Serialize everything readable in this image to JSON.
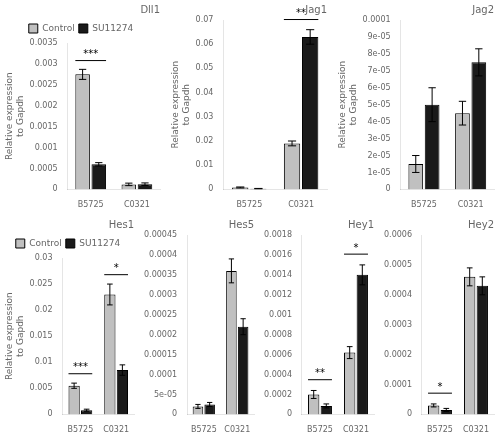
{
  "chart_data": [
    {
      "type": "bar",
      "title": "Dll1",
      "ylabel": "Relative expression\nto Gapdh",
      "categories": [
        "B5725",
        "C0321"
      ],
      "series": [
        {
          "name": "Control",
          "color": "#c0c0c0",
          "values": [
            0.00275,
            0.00012
          ],
          "errors": [
            0.00012,
            3e-05
          ]
        },
        {
          "name": "SU11274",
          "color": "#1a1a1a",
          "values": [
            0.0006,
            0.000125
          ],
          "errors": [
            4e-05,
            3e-05
          ]
        }
      ],
      "ylim": [
        0,
        0.0035
      ],
      "yticks": [
        0,
        0.0005,
        0.001,
        0.0015,
        0.002,
        0.0025,
        0.003,
        0.0035
      ],
      "grid": false,
      "legend": "top",
      "annotations": [
        {
          "category": "B5725",
          "text": "***"
        }
      ]
    },
    {
      "type": "bar",
      "title": "Jag1",
      "ylabel": "Relative expression\nto Gapdh",
      "categories": [
        "B5725",
        "C0321"
      ],
      "series": [
        {
          "name": "Control",
          "color": "#c0c0c0",
          "values": [
            0.0008,
            0.019
          ],
          "errors": [
            0.0002,
            0.001
          ]
        },
        {
          "name": "SU11274",
          "color": "#1a1a1a",
          "values": [
            0.0003,
            0.063
          ],
          "errors": [
            0.0001,
            0.003
          ]
        }
      ],
      "ylim": [
        0,
        0.07
      ],
      "yticks": [
        0,
        0.01,
        0.02,
        0.03,
        0.04,
        0.05,
        0.06,
        0.07
      ],
      "grid": false,
      "annotations": [
        {
          "category": "C0321",
          "text": "**"
        }
      ]
    },
    {
      "type": "bar",
      "title": "Jag2",
      "ylabel": "Relative expression\nto Gapdh",
      "categories": [
        "B5725",
        "C0321"
      ],
      "series": [
        {
          "name": "Control",
          "color": "#c0c0c0",
          "values": [
            1.5e-05,
            4.5e-05
          ],
          "errors": [
            5e-06,
            7e-06
          ]
        },
        {
          "name": "SU11274",
          "color": "#1a1a1a",
          "values": [
            5e-05,
            7.5e-05
          ],
          "errors": [
            1e-05,
            8e-06
          ]
        }
      ],
      "ylim": [
        0,
        0.0001
      ],
      "yticks": [
        0,
        {
          "value": 1e-05,
          "label": "1e-05"
        },
        {
          "value": 2e-05,
          "label": "2e-05"
        },
        {
          "value": 3e-05,
          "label": "3e-05"
        },
        {
          "value": 4e-05,
          "label": "4e-05"
        },
        {
          "value": 5e-05,
          "label": "5e-05"
        },
        {
          "value": 6e-05,
          "label": "6e-05"
        },
        {
          "value": 7e-05,
          "label": "7e-05"
        },
        {
          "value": 8e-05,
          "label": "8e-05"
        },
        {
          "value": 9e-05,
          "label": "9e-05"
        },
        0.0001
      ],
      "grid": false
    },
    {
      "type": "bar",
      "title": "Hes1",
      "ylabel": "Relative expression\nto Gapdh",
      "categories": [
        "B5725",
        "C0321"
      ],
      "series": [
        {
          "name": "Control",
          "color": "#c0c0c0",
          "values": [
            0.0055,
            0.023
          ],
          "errors": [
            0.0005,
            0.002
          ]
        },
        {
          "name": "SU11274",
          "color": "#1a1a1a",
          "values": [
            0.0008,
            0.0085
          ],
          "errors": [
            0.0002,
            0.001
          ]
        }
      ],
      "ylim": [
        0,
        0.03
      ],
      "yticks": [
        0,
        0.005,
        0.01,
        0.015,
        0.02,
        0.025,
        0.03
      ],
      "grid": false,
      "legend": "top",
      "annotations": [
        {
          "category": "B5725",
          "text": "***"
        },
        {
          "category": "C0321",
          "text": "*"
        }
      ]
    },
    {
      "type": "bar",
      "title": "Hes5",
      "categories": [
        "B5725",
        "C0321"
      ],
      "series": [
        {
          "name": "Control",
          "color": "#c0c0c0",
          "values": [
            2e-05,
            0.00036
          ],
          "errors": [
            5e-06,
            3e-05
          ]
        },
        {
          "name": "SU11274",
          "color": "#1a1a1a",
          "values": [
            2.5e-05,
            0.00022
          ],
          "errors": [
            5e-06,
            2e-05
          ]
        }
      ],
      "ylim": [
        0,
        0.00045
      ],
      "yticks": [
        0,
        {
          "value": 5e-05,
          "label": "5e-05"
        },
        0.0001,
        0.00015,
        0.0002,
        0.00025,
        0.0003,
        0.00035,
        0.0004,
        0.00045
      ],
      "grid": false
    },
    {
      "type": "bar",
      "title": "Hey1",
      "categories": [
        "B5725",
        "C0321"
      ],
      "series": [
        {
          "name": "Control",
          "color": "#c0c0c0",
          "values": [
            0.0002,
            0.00062
          ],
          "errors": [
            4e-05,
            6e-05
          ]
        },
        {
          "name": "SU11274",
          "color": "#1a1a1a",
          "values": [
            8.5e-05,
            0.0014
          ],
          "errors": [
            2e-05,
            0.0001
          ]
        }
      ],
      "ylim": [
        0,
        0.0018
      ],
      "yticks": [
        0,
        0.0002,
        0.0004,
        0.0006,
        0.0008,
        0.001,
        0.0012,
        0.0014,
        0.0016,
        0.0018
      ],
      "grid": false,
      "annotations": [
        {
          "category": "B5725",
          "text": "**"
        },
        {
          "category": "C0321",
          "text": "*"
        }
      ]
    },
    {
      "type": "bar",
      "title": "Hey2",
      "categories": [
        "B5725",
        "C0321"
      ],
      "series": [
        {
          "name": "Control",
          "color": "#c0c0c0",
          "values": [
            3e-05,
            0.00046
          ],
          "errors": [
            5e-06,
            3e-05
          ]
        },
        {
          "name": "SU11274",
          "color": "#1a1a1a",
          "values": [
            1.5e-05,
            0.00043
          ],
          "errors": [
            5e-06,
            3e-05
          ]
        }
      ],
      "ylim": [
        0,
        0.0006
      ],
      "yticks": [
        0,
        0.0001,
        0.0002,
        0.0003,
        0.0004,
        0.0005,
        0.0006
      ],
      "grid": false,
      "annotations": [
        {
          "category": "B5725",
          "text": "*"
        }
      ]
    }
  ]
}
